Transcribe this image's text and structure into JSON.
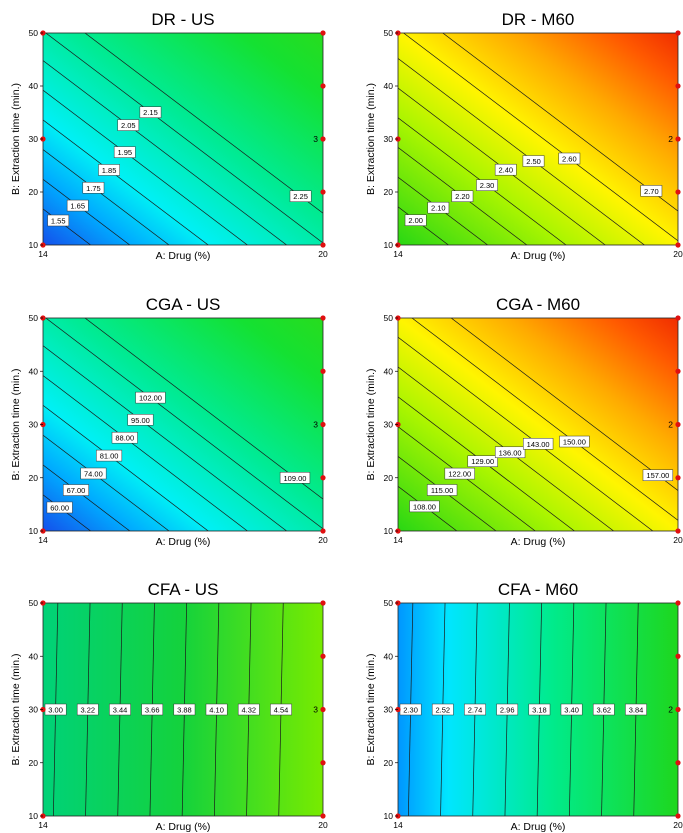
{
  "chart_data": [
    {
      "type": "contour",
      "title": "DR - US",
      "xlabel": "A: Drug (%)",
      "ylabel": "B: Extraction time (min.)",
      "xlim": [
        14,
        20
      ],
      "ylim": [
        10,
        50
      ],
      "x_ticks": [
        "14",
        "20"
      ],
      "y_ticks": [
        "10",
        "20",
        "30",
        "40",
        "50"
      ],
      "colormap": "blue-cyan-green",
      "contour_levels": [
        "1.55",
        "1.65",
        "1.75",
        "1.85",
        "1.95",
        "2.05",
        "2.15",
        "2.25"
      ],
      "design_point_label": "3"
    },
    {
      "type": "contour",
      "title": "DR - M60",
      "xlabel": "A: Drug (%)",
      "ylabel": "B: Extraction time (min.)",
      "xlim": [
        14,
        20
      ],
      "ylim": [
        10,
        50
      ],
      "x_ticks": [
        "14",
        "20"
      ],
      "y_ticks": [
        "10",
        "20",
        "30",
        "40",
        "50"
      ],
      "colormap": "green-yellow-red",
      "contour_levels": [
        "2.00",
        "2.10",
        "2.20",
        "2.30",
        "2.40",
        "2.50",
        "2.60",
        "2.70"
      ],
      "design_point_label": "2"
    },
    {
      "type": "contour",
      "title": "CGA - US",
      "xlabel": "A: Drug (%)",
      "ylabel": "B: Extraction time (min.)",
      "xlim": [
        14,
        20
      ],
      "ylim": [
        10,
        50
      ],
      "x_ticks": [
        "14",
        "20"
      ],
      "y_ticks": [
        "10",
        "20",
        "30",
        "40",
        "50"
      ],
      "colormap": "blue-cyan-green",
      "contour_levels": [
        "60.00",
        "67.00",
        "74.00",
        "81.00",
        "88.00",
        "95.00",
        "102.00",
        "109.00"
      ],
      "design_point_label": "3"
    },
    {
      "type": "contour",
      "title": "CGA - M60",
      "xlabel": "A: Drug (%)",
      "ylabel": "B: Extraction time (min.)",
      "xlim": [
        14,
        20
      ],
      "ylim": [
        10,
        50
      ],
      "x_ticks": [
        "14",
        "20"
      ],
      "y_ticks": [
        "10",
        "20",
        "30",
        "40",
        "50"
      ],
      "colormap": "green-yellow-red",
      "contour_levels": [
        "108.00",
        "115.00",
        "122.00",
        "129.00",
        "136.00",
        "143.00",
        "150.00",
        "157.00"
      ],
      "design_point_label": "2"
    },
    {
      "type": "contour",
      "title": "CFA - US",
      "xlabel": "A: Drug (%)",
      "ylabel": "B: Extraction time (min.)",
      "xlim": [
        14,
        20
      ],
      "ylim": [
        10,
        50
      ],
      "x_ticks": [
        "14",
        "20"
      ],
      "y_ticks": [
        "10",
        "20",
        "30",
        "40",
        "50"
      ],
      "colormap": "green-to-lightgreen",
      "contour_levels": [
        "3.00",
        "3.22",
        "3.44",
        "3.66",
        "3.88",
        "4.10",
        "4.32",
        "4.54"
      ],
      "design_point_label": "3"
    },
    {
      "type": "contour",
      "title": "CFA - M60",
      "xlabel": "A: Drug (%)",
      "ylabel": "B: Extraction time (min.)",
      "xlim": [
        14,
        20
      ],
      "ylim": [
        10,
        50
      ],
      "x_ticks": [
        "14",
        "20"
      ],
      "y_ticks": [
        "10",
        "20",
        "30",
        "40",
        "50"
      ],
      "colormap": "cyan-to-green",
      "contour_levels": [
        "2.30",
        "2.52",
        "2.74",
        "2.96",
        "3.18",
        "3.40",
        "3.62",
        "3.84"
      ],
      "design_point_label": "2"
    }
  ]
}
